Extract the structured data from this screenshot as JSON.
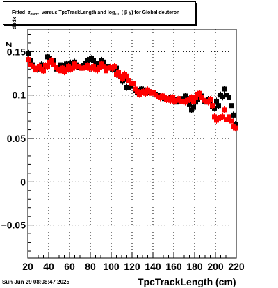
{
  "header": {
    "title_prefix": "Fitted",
    "title_z": "z",
    "title_z_sub": "dNdx",
    "title_mid": "versus TpcTrackLength and log",
    "title_log_sub": "10",
    "title_beta_gamma": "( β γ)",
    "title_suffix": "for Global deuteron"
  },
  "footer": {
    "date": "Sun Jun 29 08:08:47 2025"
  },
  "axes": {
    "x_title": "TpcTrackLength (cm)",
    "y_symbol": "z",
    "y_sub": "dNdx"
  },
  "colors": {
    "series_black": "#000000",
    "series_red": "#ff0000",
    "grid": "#000000"
  },
  "chart_data": {
    "type": "scatter",
    "xlim": [
      20,
      220
    ],
    "ylim": [
      -0.088,
      0.176
    ],
    "x_ticks": [
      20,
      40,
      60,
      80,
      100,
      120,
      140,
      160,
      180,
      200,
      220
    ],
    "y_ticks": [
      -0.05,
      0,
      0.05,
      0.1,
      0.15
    ],
    "y_tick_labels": [
      "−0.05",
      "0",
      "0.05",
      "0.1",
      "0.15"
    ],
    "grid": true,
    "series": [
      {
        "color": "black",
        "x": [
          21,
          23,
          25,
          27,
          29,
          31,
          33,
          35,
          37,
          39,
          41,
          43,
          45,
          47,
          49,
          51,
          53,
          55,
          57,
          59,
          61,
          63,
          65,
          67,
          69,
          71,
          73,
          75,
          77,
          79,
          81,
          83,
          85,
          87,
          89,
          91,
          93,
          95,
          97,
          99,
          101,
          103,
          105,
          107,
          109,
          111,
          113,
          115,
          117,
          119,
          121,
          123,
          125,
          127,
          129,
          131,
          133,
          135,
          137,
          139,
          141,
          143,
          145,
          147,
          149,
          151,
          153,
          155,
          157,
          159,
          161,
          163,
          165,
          167,
          169,
          171,
          173,
          175,
          177,
          179,
          181,
          183,
          185,
          187,
          189,
          191,
          193,
          195,
          197,
          199,
          201,
          203,
          205,
          207,
          209,
          211,
          213,
          215,
          217,
          219
        ],
        "y": [
          0.148,
          0.14,
          0.135,
          0.131,
          0.13,
          0.133,
          0.135,
          0.134,
          0.133,
          0.144,
          0.142,
          0.139,
          0.14,
          0.13,
          0.132,
          0.135,
          0.131,
          0.134,
          0.136,
          0.13,
          0.137,
          0.134,
          0.138,
          0.135,
          0.132,
          0.131,
          0.134,
          0.137,
          0.14,
          0.141,
          0.142,
          0.14,
          0.137,
          0.135,
          0.137,
          0.14,
          0.138,
          0.133,
          0.133,
          0.132,
          0.13,
          0.13,
          0.131,
          0.123,
          0.121,
          0.116,
          0.118,
          0.109,
          0.109,
          0.11,
          0.113,
          0.105,
          0.103,
          0.105,
          0.107,
          0.106,
          0.105,
          0.103,
          0.104,
          0.103,
          0.103,
          0.101,
          0.1,
          0.098,
          0.099,
          0.096,
          0.095,
          0.096,
          0.097,
          0.096,
          0.095,
          0.092,
          0.093,
          0.096,
          0.094,
          0.099,
          0.096,
          0.089,
          0.083,
          0.086,
          0.092,
          0.095,
          0.097,
          0.099,
          0.093,
          0.092,
          0.095,
          0.093,
          0.087,
          0.085,
          0.093,
          0.088,
          0.1,
          0.098,
          0.107,
          0.1,
          0.097,
          0.088,
          0.077,
          0.066
        ]
      },
      {
        "color": "red",
        "x": [
          21,
          23,
          25,
          27,
          29,
          31,
          33,
          35,
          37,
          39,
          41,
          43,
          45,
          47,
          49,
          51,
          53,
          55,
          57,
          59,
          61,
          63,
          65,
          67,
          69,
          71,
          73,
          75,
          77,
          79,
          81,
          83,
          85,
          87,
          89,
          91,
          93,
          95,
          97,
          99,
          101,
          103,
          105,
          107,
          109,
          111,
          113,
          115,
          117,
          119,
          121,
          123,
          125,
          127,
          129,
          131,
          133,
          135,
          137,
          139,
          141,
          143,
          145,
          147,
          149,
          151,
          153,
          155,
          157,
          159,
          161,
          163,
          165,
          167,
          169,
          171,
          173,
          175,
          177,
          179,
          181,
          183,
          185,
          187,
          189,
          191,
          193,
          195,
          197,
          199,
          201,
          203,
          205,
          207,
          209,
          211,
          213,
          215,
          217,
          219
        ],
        "y": [
          0.141,
          0.135,
          0.133,
          0.129,
          0.131,
          0.133,
          0.13,
          0.128,
          0.134,
          0.133,
          0.138,
          0.14,
          0.135,
          0.132,
          0.13,
          0.128,
          0.131,
          0.127,
          0.129,
          0.133,
          0.13,
          0.131,
          0.136,
          0.133,
          0.133,
          0.131,
          0.131,
          0.132,
          0.134,
          0.131,
          0.131,
          0.133,
          0.13,
          0.129,
          0.132,
          0.136,
          0.133,
          0.128,
          0.131,
          0.132,
          0.131,
          0.133,
          0.124,
          0.126,
          0.122,
          0.119,
          0.124,
          0.122,
          0.117,
          0.114,
          0.113,
          0.107,
          0.104,
          0.101,
          0.103,
          0.104,
          0.102,
          0.106,
          0.104,
          0.102,
          0.103,
          0.1,
          0.098,
          0.097,
          0.099,
          0.097,
          0.095,
          0.096,
          0.094,
          0.097,
          0.093,
          0.094,
          0.096,
          0.093,
          0.093,
          0.092,
          0.094,
          0.095,
          0.097,
          0.093,
          0.097,
          0.101,
          0.102,
          0.097,
          0.094,
          0.093,
          0.092,
          0.095,
          0.088,
          0.075,
          0.071,
          0.073,
          0.074,
          0.075,
          0.083,
          0.072,
          0.075,
          0.07,
          0.064,
          0.062
        ]
      }
    ]
  }
}
